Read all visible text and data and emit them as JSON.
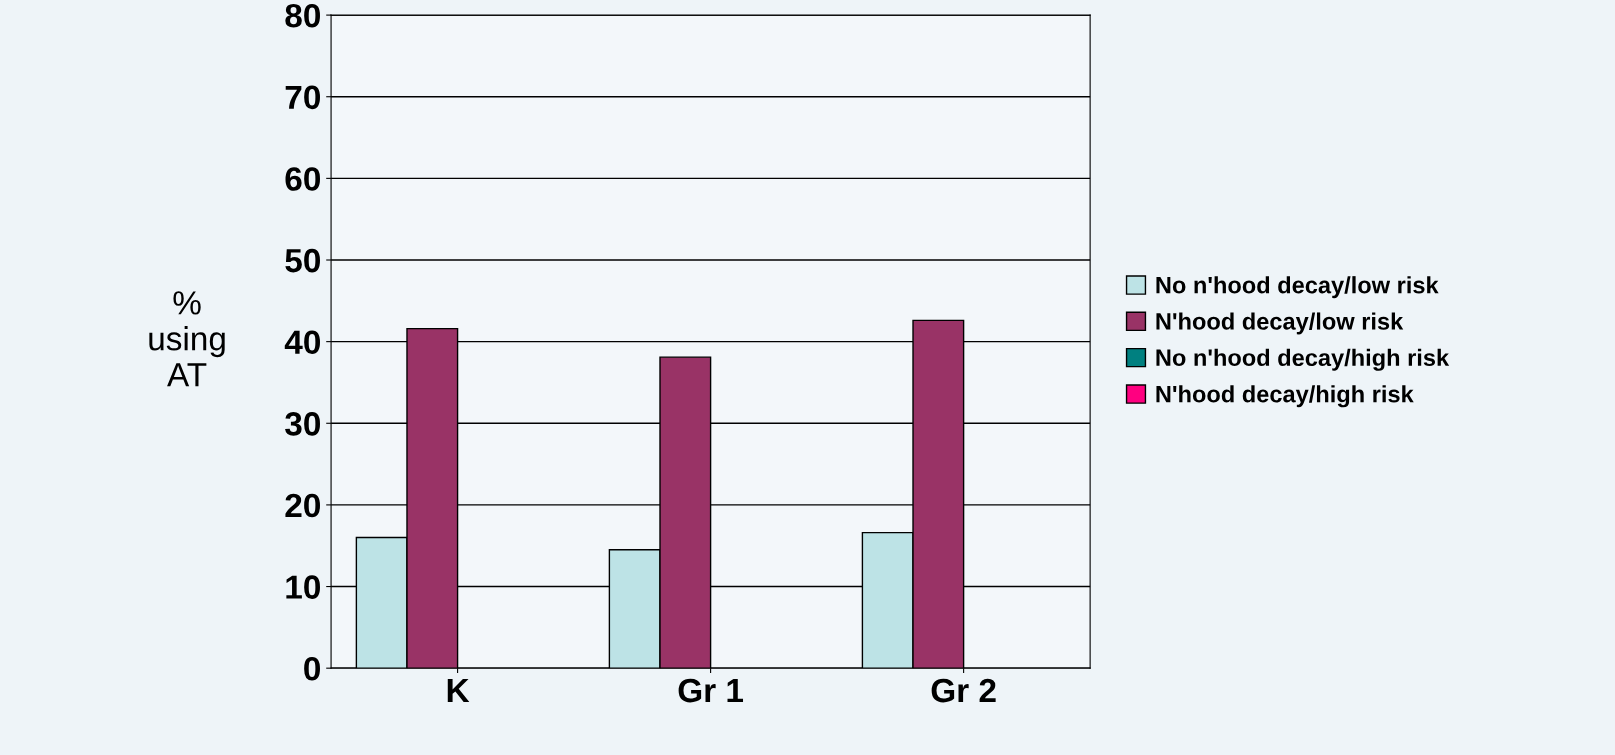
{
  "chart_data": {
    "type": "bar",
    "ylabel": "%\nusing\nAT",
    "categories": [
      "K",
      "Gr 1",
      "Gr 2"
    ],
    "series": [
      {
        "name": "No n'hood decay/low risk",
        "color": "#bde3e6",
        "values": [
          16,
          14.5,
          16.6
        ]
      },
      {
        "name": "N'hood decay/low risk",
        "color": "#993366",
        "values": [
          41.6,
          38.1,
          42.6
        ]
      },
      {
        "name": "No n'hood decay/high risk",
        "color": "#008080",
        "values": [
          null,
          null,
          null
        ]
      },
      {
        "name": "N'hood decay/high risk",
        "color": "#ff0080",
        "values": [
          null,
          null,
          null
        ]
      }
    ],
    "ylim": [
      0,
      80
    ],
    "yticks": [
      0,
      10,
      20,
      30,
      40,
      50,
      60,
      70,
      80
    ],
    "grid": "y",
    "legend": "right"
  }
}
